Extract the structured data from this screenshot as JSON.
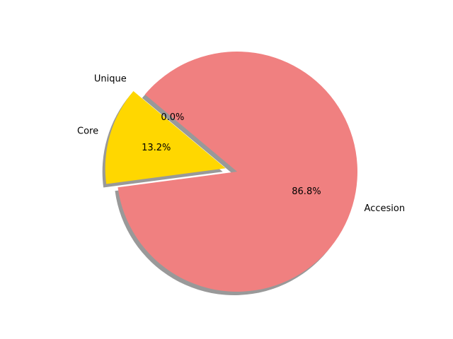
{
  "chart_data": {
    "type": "pie",
    "title": "",
    "slices": [
      {
        "label": "Core",
        "value": 13.2,
        "pct_label": "13.2%",
        "color": "#ffd700",
        "exploded": true
      },
      {
        "label": "Accesion",
        "value": 86.8,
        "pct_label": "86.8%",
        "color": "#f08080",
        "exploded": false
      },
      {
        "label": "Unique",
        "value": 0.0,
        "pct_label": "0.0%",
        "color": "#87cefa",
        "exploded": true
      }
    ],
    "shadow": true,
    "start_angle_deg": 140,
    "legend": "none"
  }
}
